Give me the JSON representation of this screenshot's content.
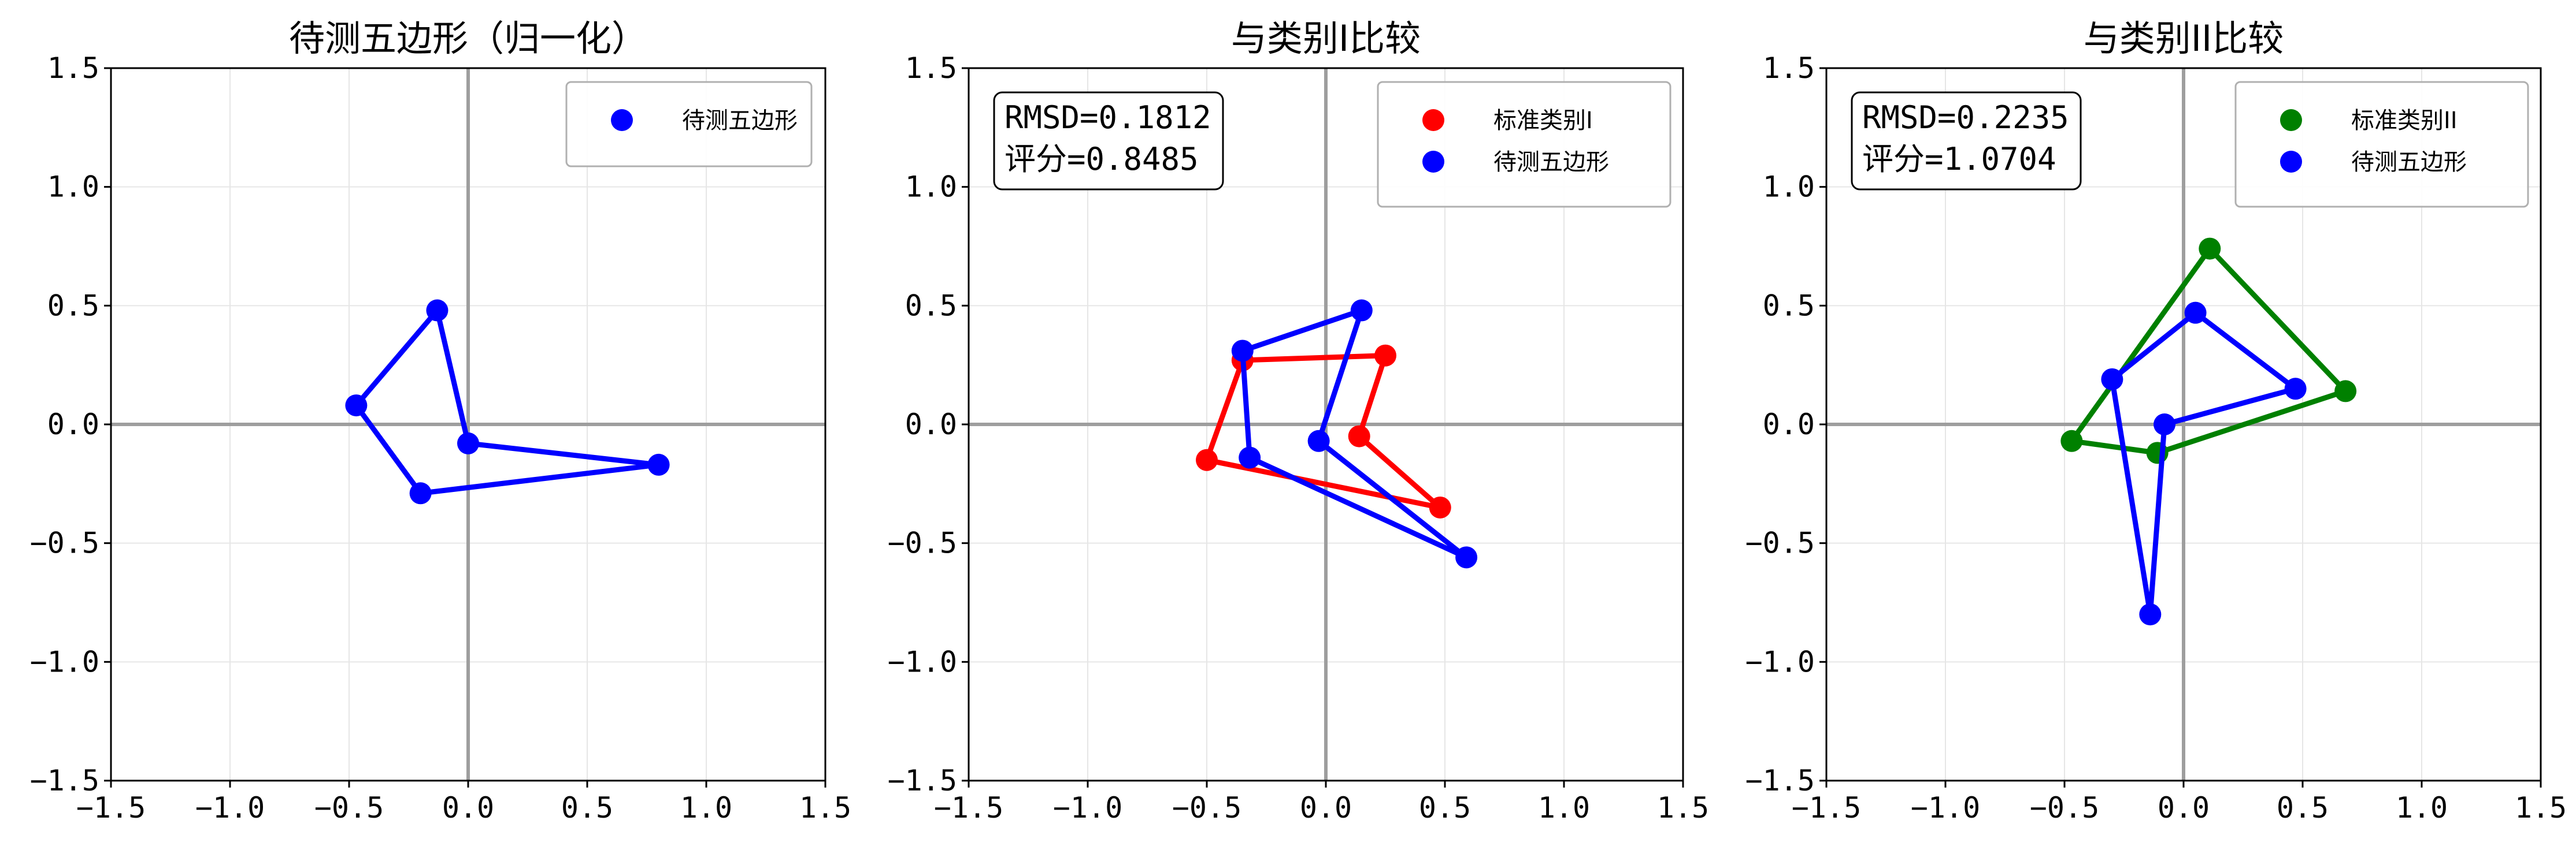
{
  "chart_data": [
    {
      "type": "line",
      "title": "待测五边形（归一化）",
      "xlim": [
        -1.5,
        1.5
      ],
      "ylim": [
        -1.5,
        1.5
      ],
      "xticks": [
        "−1.5",
        "−1.0",
        "−0.5",
        "0.0",
        "0.5",
        "1.0",
        "1.5"
      ],
      "yticks": [
        "−1.5",
        "−1.0",
        "−0.5",
        "0.0",
        "0.5",
        "1.0",
        "1.5"
      ],
      "grid": true,
      "legend_position": "top-right",
      "legend": [
        "待测五边形"
      ],
      "series": [
        {
          "name": "待测五边形",
          "color": "#0000ff",
          "points": [
            [
              0.8,
              -0.17
            ],
            [
              0.0,
              -0.08
            ],
            [
              -0.13,
              0.48
            ],
            [
              -0.47,
              0.08
            ],
            [
              -0.2,
              -0.29
            ]
          ]
        }
      ]
    },
    {
      "type": "line",
      "title": "与类别I比较",
      "xlim": [
        -1.5,
        1.5
      ],
      "ylim": [
        -1.5,
        1.5
      ],
      "xticks": [
        "−1.5",
        "−1.0",
        "−0.5",
        "0.0",
        "0.5",
        "1.0",
        "1.5"
      ],
      "yticks": [
        "−1.5",
        "−1.0",
        "−0.5",
        "0.0",
        "0.5",
        "1.0",
        "1.5"
      ],
      "grid": true,
      "legend_position": "top-right",
      "legend": [
        "标准类别I",
        "待测五边形"
      ],
      "annotation": [
        "RMSD=0.1812",
        "评分=0.8485"
      ],
      "series": [
        {
          "name": "标准类别I",
          "color": "#ff0000",
          "points": [
            [
              0.48,
              -0.35
            ],
            [
              -0.5,
              -0.15
            ],
            [
              -0.35,
              0.27
            ],
            [
              0.25,
              0.29
            ],
            [
              0.14,
              -0.05
            ]
          ]
        },
        {
          "name": "待测五边形",
          "color": "#0000ff",
          "points": [
            [
              0.59,
              -0.56
            ],
            [
              -0.03,
              -0.07
            ],
            [
              0.15,
              0.48
            ],
            [
              -0.35,
              0.31
            ],
            [
              -0.32,
              -0.14
            ]
          ]
        }
      ]
    },
    {
      "type": "line",
      "title": "与类别II比较",
      "xlim": [
        -1.5,
        1.5
      ],
      "ylim": [
        -1.5,
        1.5
      ],
      "xticks": [
        "−1.5",
        "−1.0",
        "−0.5",
        "0.0",
        "0.5",
        "1.0",
        "1.5"
      ],
      "yticks": [
        "−1.5",
        "−1.0",
        "−0.5",
        "0.0",
        "0.5",
        "1.0",
        "1.5"
      ],
      "grid": true,
      "legend_position": "top-right",
      "legend": [
        "标准类别II",
        "待测五边形"
      ],
      "annotation": [
        "RMSD=0.2235",
        "评分=1.0704"
      ],
      "series": [
        {
          "name": "标准类别II",
          "color": "#008000",
          "points": [
            [
              0.68,
              0.14
            ],
            [
              -0.11,
              -0.12
            ],
            [
              -0.47,
              -0.07
            ],
            [
              0.11,
              0.74
            ]
          ]
        },
        {
          "name": "待测五边形",
          "color": "#0000ff",
          "points": [
            [
              -0.08,
              0.0
            ],
            [
              -0.14,
              -0.8
            ],
            [
              -0.3,
              0.19
            ],
            [
              0.05,
              0.47
            ],
            [
              0.47,
              0.15
            ]
          ]
        }
      ]
    }
  ]
}
